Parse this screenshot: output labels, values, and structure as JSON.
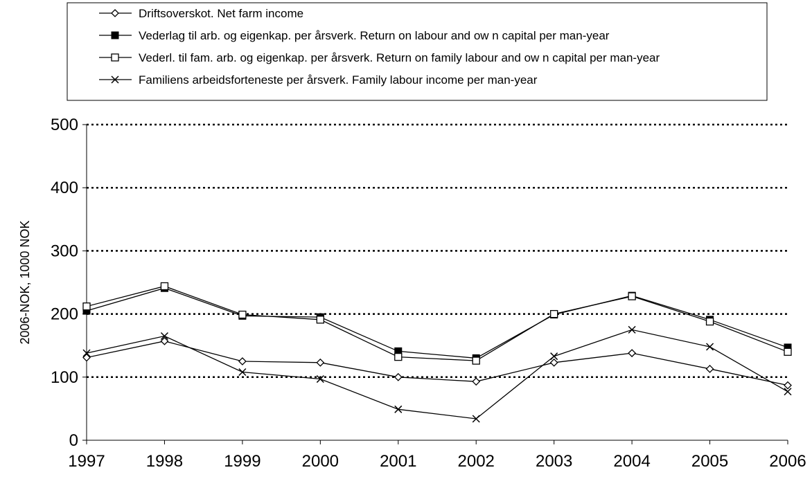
{
  "chart_data": {
    "type": "line",
    "title": "",
    "xlabel": "",
    "ylabel": "2006-NOK, 1000 NOK",
    "ylim": [
      0,
      500
    ],
    "yticks": [
      "0",
      "100",
      "200",
      "300",
      "400",
      "500"
    ],
    "grid": "horizontal dotted",
    "legend_placement": "top",
    "categories": [
      "1997",
      "1998",
      "1999",
      "2000",
      "2001",
      "2002",
      "2003",
      "2004",
      "2005",
      "2006"
    ],
    "series": [
      {
        "name": "Driftsoverskot. Net farm income",
        "marker": "diamond",
        "values": [
          131,
          157,
          125,
          123,
          100,
          93,
          123,
          138,
          113,
          87
        ]
      },
      {
        "name": "Vederlag til arb. og eigenkap. per årsverk. Return on labour and ow n capital per man-year",
        "marker": "filled-square",
        "values": [
          205,
          241,
          197,
          195,
          141,
          130,
          199,
          229,
          191,
          147
        ]
      },
      {
        "name": "Vederl. til fam. arb. og eigenkap. per årsverk. Return on family labour and ow n capital per man-year",
        "marker": "open-square",
        "values": [
          212,
          244,
          199,
          191,
          132,
          126,
          200,
          228,
          188,
          140
        ]
      },
      {
        "name": "Familiens arbeidsforteneste per årsverk. Family labour income per man-year",
        "marker": "x",
        "values": [
          138,
          165,
          108,
          97,
          49,
          34,
          133,
          175,
          148,
          77
        ]
      }
    ]
  },
  "colors": {
    "line": "#000000",
    "grid": "#000000",
    "background": "#ffffff"
  }
}
